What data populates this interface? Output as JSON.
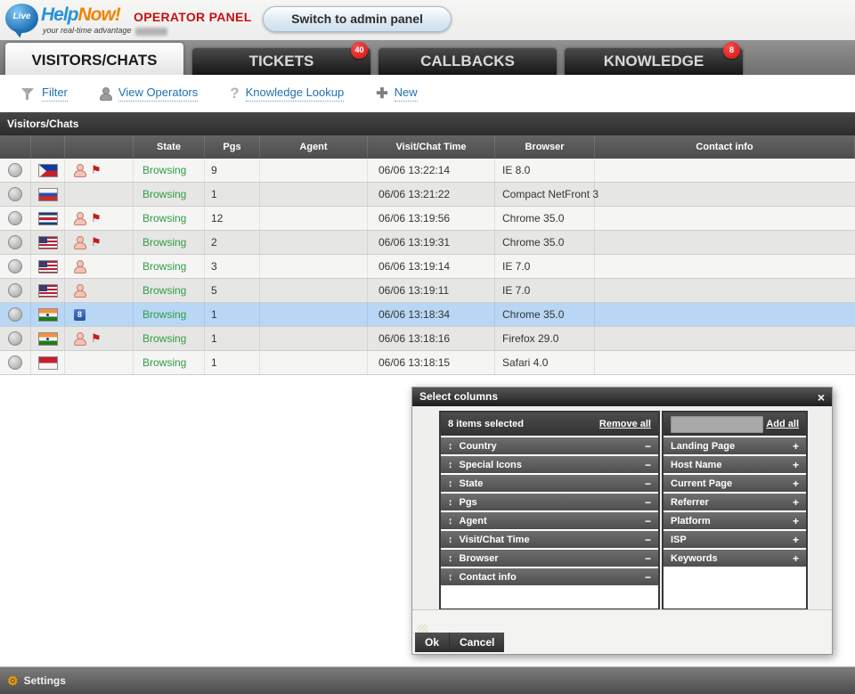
{
  "header": {
    "logo": {
      "bubble_text": "Live",
      "help": "Help",
      "now": "Now!",
      "tagline": "your real-time advantage"
    },
    "panel_title": "OPERATOR PANEL",
    "switch_button": "Switch to admin panel"
  },
  "tabs": [
    {
      "label": "VISITORS/CHATS",
      "active": true
    },
    {
      "label": "TICKETS",
      "badge": "40"
    },
    {
      "label": "CALLBACKS"
    },
    {
      "label": "KNOWLEDGE",
      "badge": "8"
    }
  ],
  "toolbar": [
    {
      "icon": "filter-icon",
      "label": "Filter"
    },
    {
      "icon": "operators-icon",
      "label": "View Operators"
    },
    {
      "icon": "question-icon",
      "label": "Knowledge Lookup"
    },
    {
      "icon": "plus-icon",
      "label": "New"
    }
  ],
  "table": {
    "title": "Visitors/Chats",
    "columns": [
      "",
      "",
      "",
      "State",
      "Pgs",
      "Agent",
      "Visit/Chat Time",
      "Browser",
      "Contact info"
    ],
    "rows": [
      {
        "country": "ph",
        "icons": [
          {
            "name": "visitor-icon"
          },
          {
            "name": "chat-flag-icon"
          }
        ],
        "state": "Browsing",
        "pgs": "9",
        "agent": "",
        "time": "06/06 13:22:14",
        "browser": "IE 8.0",
        "contact": "",
        "selected": false
      },
      {
        "country": "ru",
        "icons": [],
        "state": "Browsing",
        "pgs": "1",
        "agent": "",
        "time": "06/06 13:21:22",
        "browser": "Compact NetFront 3",
        "contact": "",
        "selected": false
      },
      {
        "country": "cr",
        "icons": [
          {
            "name": "visitor-icon"
          },
          {
            "name": "chat-flag-icon"
          }
        ],
        "state": "Browsing",
        "pgs": "12",
        "agent": "",
        "time": "06/06 13:19:56",
        "browser": "Chrome 35.0",
        "contact": "",
        "selected": false
      },
      {
        "country": "us",
        "icons": [
          {
            "name": "visitor-icon"
          },
          {
            "name": "chat-flag-icon"
          }
        ],
        "state": "Browsing",
        "pgs": "2",
        "agent": "",
        "time": "06/06 13:19:31",
        "browser": "Chrome 35.0",
        "contact": "",
        "selected": false
      },
      {
        "country": "us",
        "icons": [
          {
            "name": "visitor-icon"
          }
        ],
        "state": "Browsing",
        "pgs": "3",
        "agent": "",
        "time": "06/06 13:19:14",
        "browser": "IE 7.0",
        "contact": "",
        "selected": false
      },
      {
        "country": "us",
        "icons": [
          {
            "name": "visitor-icon"
          }
        ],
        "state": "Browsing",
        "pgs": "5",
        "agent": "",
        "time": "06/06 13:19:11",
        "browser": "IE 7.0",
        "contact": "",
        "selected": false
      },
      {
        "country": "in",
        "icons": [
          {
            "name": "returning-visitor-badge",
            "text": "8"
          }
        ],
        "state": "Browsing",
        "pgs": "1",
        "agent": "",
        "time": "06/06 13:18:34",
        "browser": "Chrome 35.0",
        "contact": "",
        "selected": true
      },
      {
        "country": "in",
        "icons": [
          {
            "name": "visitor-icon"
          },
          {
            "name": "chat-flag-icon"
          }
        ],
        "state": "Browsing",
        "pgs": "1",
        "agent": "",
        "time": "06/06 13:18:16",
        "browser": "Firefox 29.0",
        "contact": "",
        "selected": false
      },
      {
        "country": "id",
        "icons": [],
        "state": "Browsing",
        "pgs": "1",
        "agent": "",
        "time": "06/06 13:18:15",
        "browser": "Safari 4.0",
        "contact": "",
        "selected": false
      }
    ]
  },
  "dialog": {
    "title": "Select columns",
    "selected_count": "8 items selected",
    "remove_all": "Remove all",
    "add_all": "Add all",
    "search_value": "",
    "selected_columns": [
      "Country",
      "Special Icons",
      "State",
      "Pgs",
      "Agent",
      "Visit/Chat Time",
      "Browser",
      "Contact info"
    ],
    "available_columns": [
      "Landing Page",
      "Host Name",
      "Current Page",
      "Referrer",
      "Platform",
      "ISP",
      "Keywords"
    ],
    "ok": "Ok",
    "cancel": "Cancel"
  },
  "footer": {
    "settings": "Settings"
  },
  "icons": {
    "drag": "↕",
    "remove": "−",
    "add": "+",
    "close": "×",
    "chat_flag": "⚑",
    "gear": "⚙",
    "question": "?",
    "plus": "✚"
  },
  "colors": {
    "link_blue": "#2470ae",
    "badge_red": "#d80f0f",
    "state_green": "#2f9e40",
    "selected_row": "#b9d7f5",
    "brand_orange": "#f08300",
    "brand_blue": "#2792d8",
    "panel_red": "#c80f0f",
    "gear_orange": "#f2a200"
  }
}
